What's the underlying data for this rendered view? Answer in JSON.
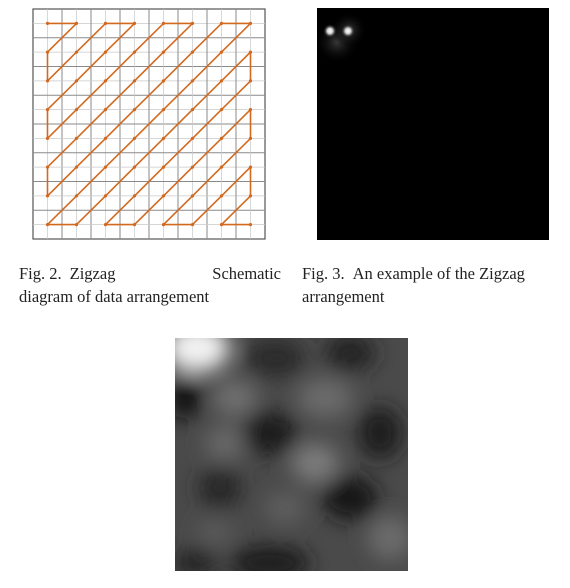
{
  "figure2": {
    "caption_number": "Fig. 2.",
    "caption_word1": "Zigzag",
    "caption_word2": "Schematic",
    "caption_line2": "diagram of data arrangement",
    "grid_cells": 8,
    "path_color": "#d2691e"
  },
  "figure3": {
    "caption_number": "Fig. 3.",
    "caption_line1_text": "An example of the Zigzag",
    "caption_line2": "arrangement"
  },
  "figure4": {}
}
